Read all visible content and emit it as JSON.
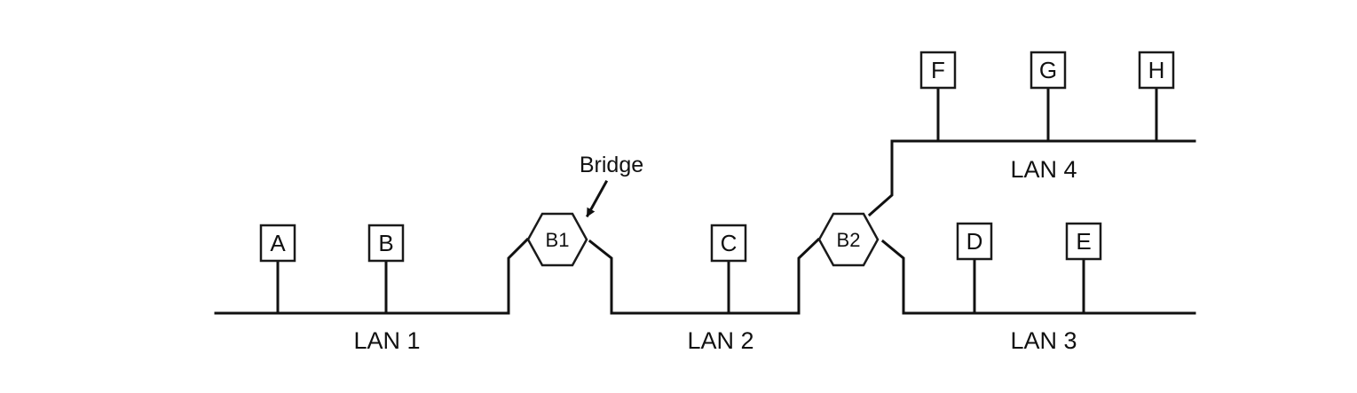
{
  "stations": {
    "a": "A",
    "b": "B",
    "c": "C",
    "d": "D",
    "e": "E",
    "f": "F",
    "g": "G",
    "h": "H"
  },
  "bridges": {
    "b1": "B1",
    "b2": "B2"
  },
  "lans": {
    "lan1": "LAN 1",
    "lan2": "LAN 2",
    "lan3": "LAN 3",
    "lan4": "LAN 4"
  },
  "callout": {
    "bridge": "Bridge"
  }
}
